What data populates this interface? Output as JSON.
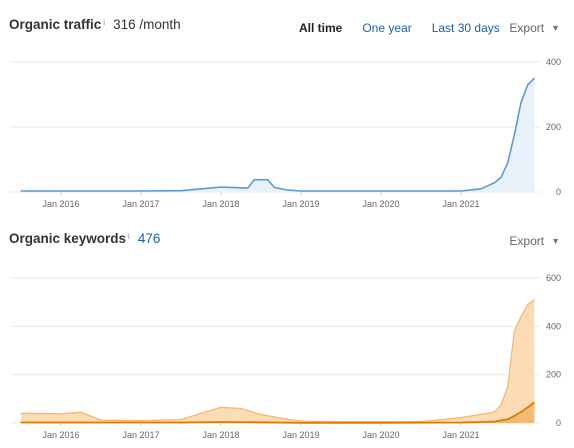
{
  "traffic": {
    "title": "Organic traffic",
    "info_icon": "info-icon",
    "value": "316 /month",
    "range_buttons": [
      {
        "label": "All time",
        "active": true
      },
      {
        "label": "One year",
        "active": false
      },
      {
        "label": "Last 30 days",
        "active": false
      }
    ],
    "export_label": "Export",
    "caret_icon": "caret-down-icon"
  },
  "keywords": {
    "title": "Organic keywords",
    "info_icon": "info-icon",
    "value": "476",
    "export_label": "Export",
    "caret_icon": "caret-down-icon"
  },
  "colors": {
    "traffic_line": "#5b9bd5",
    "traffic_fill": "#e9f1fa",
    "keywords_fill": "#fbdcb4",
    "keywords_line": "#f5b872",
    "keywords_top3": "#e07b00",
    "grid": "#e8e8e8",
    "link": "#1f5fa8"
  },
  "chart_data": [
    {
      "type": "area",
      "title": "Organic traffic",
      "x_tick_labels": [
        "Jan 2016",
        "Jan 2017",
        "Jan 2018",
        "Jan 2019",
        "Jan 2020",
        "Jan 2021"
      ],
      "y_tick_labels": [
        "0",
        "200",
        "400"
      ],
      "ylim": [
        0,
        400
      ],
      "y_axis_side": "right",
      "grid": true,
      "series": [
        {
          "x": [
            "2015-07",
            "2016-01",
            "2016-07",
            "2017-01",
            "2017-07",
            "2018-01",
            "2018-05",
            "2018-06",
            "2018-08",
            "2018-09",
            "2018-11",
            "2019-01",
            "2019-07",
            "2020-01",
            "2020-07",
            "2021-01",
            "2021-04",
            "2021-06",
            "2021-07",
            "2021-08",
            "2021-09",
            "2021-10",
            "2021-11",
            "2021-12"
          ],
          "y": [
            3,
            3,
            3,
            3,
            4,
            15,
            12,
            38,
            38,
            14,
            6,
            3,
            3,
            3,
            3,
            3,
            10,
            28,
            45,
            90,
            175,
            275,
            330,
            350
          ]
        }
      ]
    },
    {
      "type": "area",
      "title": "Organic keywords",
      "x_tick_labels": [
        "Jan 2016",
        "Jan 2017",
        "Jan 2018",
        "Jan 2019",
        "Jan 2020",
        "Jan 2021"
      ],
      "y_tick_labels": [
        "0",
        "200",
        "400",
        "600"
      ],
      "ylim": [
        0,
        600
      ],
      "y_axis_side": "right",
      "grid": true,
      "series": [
        {
          "x": [
            "2015-07",
            "2016-01",
            "2016-04",
            "2016-07",
            "2017-01",
            "2017-07",
            "2017-10",
            "2018-01",
            "2018-04",
            "2018-07",
            "2018-10",
            "2019-01",
            "2019-07",
            "2020-01",
            "2020-07",
            "2021-01",
            "2021-06",
            "2021-07",
            "2021-08",
            "2021-09",
            "2021-10",
            "2021-11",
            "2021-12"
          ],
          "y": [
            40,
            38,
            45,
            12,
            10,
            14,
            40,
            65,
            60,
            35,
            20,
            8,
            6,
            6,
            6,
            22,
            45,
            75,
            150,
            380,
            440,
            490,
            510
          ]
        },
        {
          "x": [
            "2015-07",
            "2016-07",
            "2017-07",
            "2018-01",
            "2018-07",
            "2019-01",
            "2020-01",
            "2021-01",
            "2021-06",
            "2021-08",
            "2021-10",
            "2021-12"
          ],
          "y": [
            2,
            2,
            2,
            4,
            3,
            1,
            1,
            2,
            6,
            15,
            45,
            85
          ]
        }
      ]
    }
  ]
}
